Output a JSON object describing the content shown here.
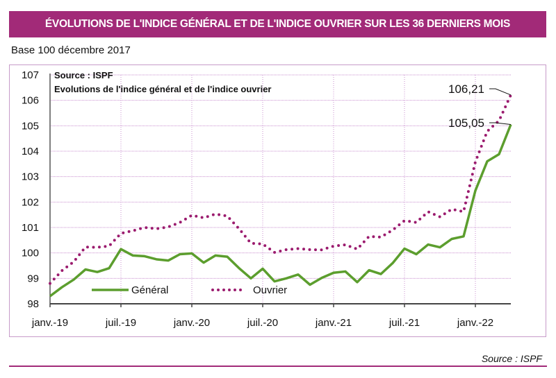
{
  "header": {
    "title": "ÉVOLUTIONS DE L'INDICE GÉNÉRAL ET DE L'INDICE OUVRIER SUR LES 36 DERNIERS MOIS",
    "base_label": "Base 100 décembre 2017"
  },
  "footer": {
    "source": "Source : ISPF"
  },
  "colors": {
    "banner": "#a22a78",
    "general": "#5c9e2e",
    "ouvrier": "#9b1b6e",
    "grid": "#c98fcf"
  },
  "chart_data": {
    "type": "line",
    "title": "Evolutions de l'indice général et de l'indice ouvrier",
    "note": "Source : ISPF",
    "xlabel": "",
    "ylabel": "",
    "ylim": [
      98,
      107
    ],
    "yticks": [
      "98",
      "99",
      "100",
      "101",
      "102",
      "103",
      "104",
      "105",
      "106",
      "107"
    ],
    "xtick_labels": [
      "janv.-19",
      "juil.-19",
      "janv.-20",
      "juil.-20",
      "janv.-21",
      "juil.-21",
      "janv.-22"
    ],
    "xtick_index": [
      0,
      6,
      12,
      18,
      24,
      30,
      36
    ],
    "x": [
      "janv.-19",
      "févr.-19",
      "mars-19",
      "avr.-19",
      "mai-19",
      "juin-19",
      "juil.-19",
      "août-19",
      "sept.-19",
      "oct.-19",
      "nov.-19",
      "déc.-19",
      "janv.-20",
      "févr.-20",
      "mars-20",
      "avr.-20",
      "mai-20",
      "juin-20",
      "juil.-20",
      "août-20",
      "sept.-20",
      "oct.-20",
      "nov.-20",
      "déc.-20",
      "janv.-21",
      "févr.-21",
      "mars-21",
      "avr.-21",
      "mai-21",
      "juin-21",
      "juil.-21",
      "août-21",
      "sept.-21",
      "oct.-21",
      "nov.-21",
      "déc.-21",
      "janv.-22",
      "févr.-22",
      "mars-22",
      "avr.-22"
    ],
    "grid": true,
    "legend": "bottom-left (inside plot)",
    "series": [
      {
        "name": "Général",
        "style": "solid",
        "values": [
          98.3,
          98.65,
          98.95,
          99.35,
          99.25,
          99.4,
          100.15,
          99.9,
          99.87,
          99.75,
          99.7,
          99.95,
          99.98,
          99.62,
          99.9,
          99.85,
          99.4,
          99.0,
          99.38,
          98.88,
          99.0,
          99.15,
          98.75,
          99.02,
          99.22,
          99.27,
          98.85,
          99.32,
          99.17,
          99.6,
          100.17,
          99.95,
          100.33,
          100.22,
          100.55,
          100.65,
          102.45,
          103.6,
          103.88,
          105.05
        ]
      },
      {
        "name": "Ouvrier",
        "style": "dotted",
        "values": [
          98.8,
          99.3,
          99.65,
          100.23,
          100.22,
          100.27,
          100.77,
          100.87,
          101.0,
          100.95,
          101.02,
          101.2,
          101.48,
          101.38,
          101.53,
          101.45,
          100.95,
          100.38,
          100.35,
          100.02,
          100.13,
          100.17,
          100.13,
          100.12,
          100.27,
          100.32,
          100.15,
          100.65,
          100.62,
          100.9,
          101.27,
          101.2,
          101.62,
          101.42,
          101.72,
          101.62,
          103.58,
          104.78,
          105.2,
          106.21
        ]
      }
    ],
    "annotations": [
      {
        "series": "Ouvrier",
        "label": "106,21"
      },
      {
        "series": "Général",
        "label": "105,05"
      }
    ]
  }
}
